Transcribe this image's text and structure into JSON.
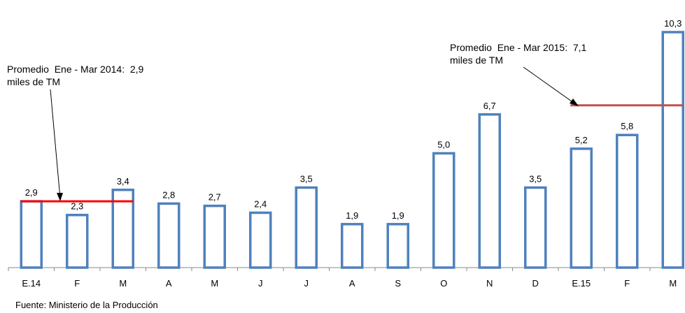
{
  "chart_data": {
    "type": "bar",
    "categories": [
      "E.14",
      "F",
      "M",
      "A",
      "M",
      "J",
      "J",
      "A",
      "S",
      "O",
      "N",
      "D",
      "E.15",
      "F",
      "M"
    ],
    "values": [
      2.9,
      2.3,
      3.4,
      2.8,
      2.7,
      2.4,
      3.5,
      1.9,
      1.9,
      5.0,
      6.7,
      3.5,
      5.2,
      5.8,
      10.3
    ],
    "value_labels": [
      "2,9",
      "2,3",
      "3,4",
      "2,8",
      "2,7",
      "2,4",
      "3,5",
      "1,9",
      "1,9",
      "5,0",
      "6,7",
      "3,5",
      "5,2",
      "5,8",
      "10,3"
    ],
    "ylim": [
      0,
      10.3
    ],
    "grid": false,
    "bar_color": "#4f81bd",
    "averages": [
      {
        "value": 2.9,
        "from_index": 0,
        "to_index": 2,
        "color": "#ff0000",
        "label_line1": "Promedio  Ene - Mar 2014:  2,9",
        "label_line2": "miles de TM"
      },
      {
        "value": 7.1,
        "from_index": 12,
        "to_index": 14,
        "color": "#c0504d",
        "label_line1": "Promedio  Ene - Mar 2015:  7,1",
        "label_line2": "miles de TM"
      }
    ],
    "source": "Fuente: Ministerio de la Producción"
  }
}
